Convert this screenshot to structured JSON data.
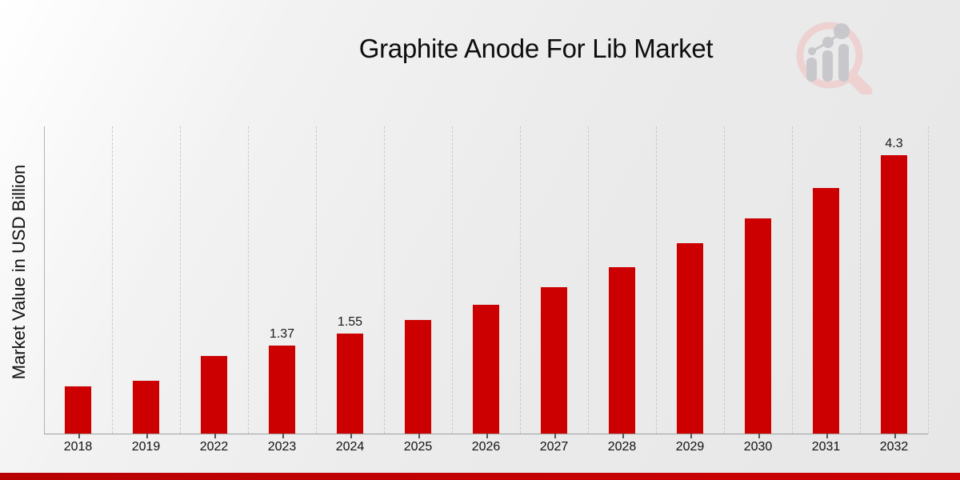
{
  "title": "Graphite Anode For Lib Market",
  "y_axis_label": "Market Value in USD Billion",
  "watermark_name": "magnifier-bar-chart-logo",
  "colors": {
    "bar": "#cc0000",
    "bar_border": "#e9e9e9",
    "bottom_banner": "#c20000",
    "gridline": "#c8c8c8",
    "axis_line": "#a0a0a0",
    "text": "#111111",
    "watermark_ring": "#eccccc",
    "watermark_gray": "#c7c7cc"
  },
  "chart_data": {
    "type": "bar",
    "title": "Graphite Anode For Lib Market",
    "xlabel": "",
    "ylabel": "Market Value in USD Billion",
    "categories": [
      "2018",
      "2019",
      "2022",
      "2023",
      "2024",
      "2025",
      "2026",
      "2027",
      "2028",
      "2029",
      "2030",
      "2031",
      "2032"
    ],
    "values": [
      0.74,
      0.83,
      1.21,
      1.37,
      1.55,
      1.76,
      2.0,
      2.27,
      2.58,
      2.95,
      3.33,
      3.79,
      4.3
    ],
    "data_labels": [
      "",
      "",
      "",
      "1.37",
      "1.55",
      "",
      "",
      "",
      "",
      "",
      "",
      "",
      "4.3"
    ],
    "bar_color": "#cc0000",
    "ylim": [
      0,
      4.73
    ],
    "grid": "vertical-dashed",
    "legend": "none"
  }
}
